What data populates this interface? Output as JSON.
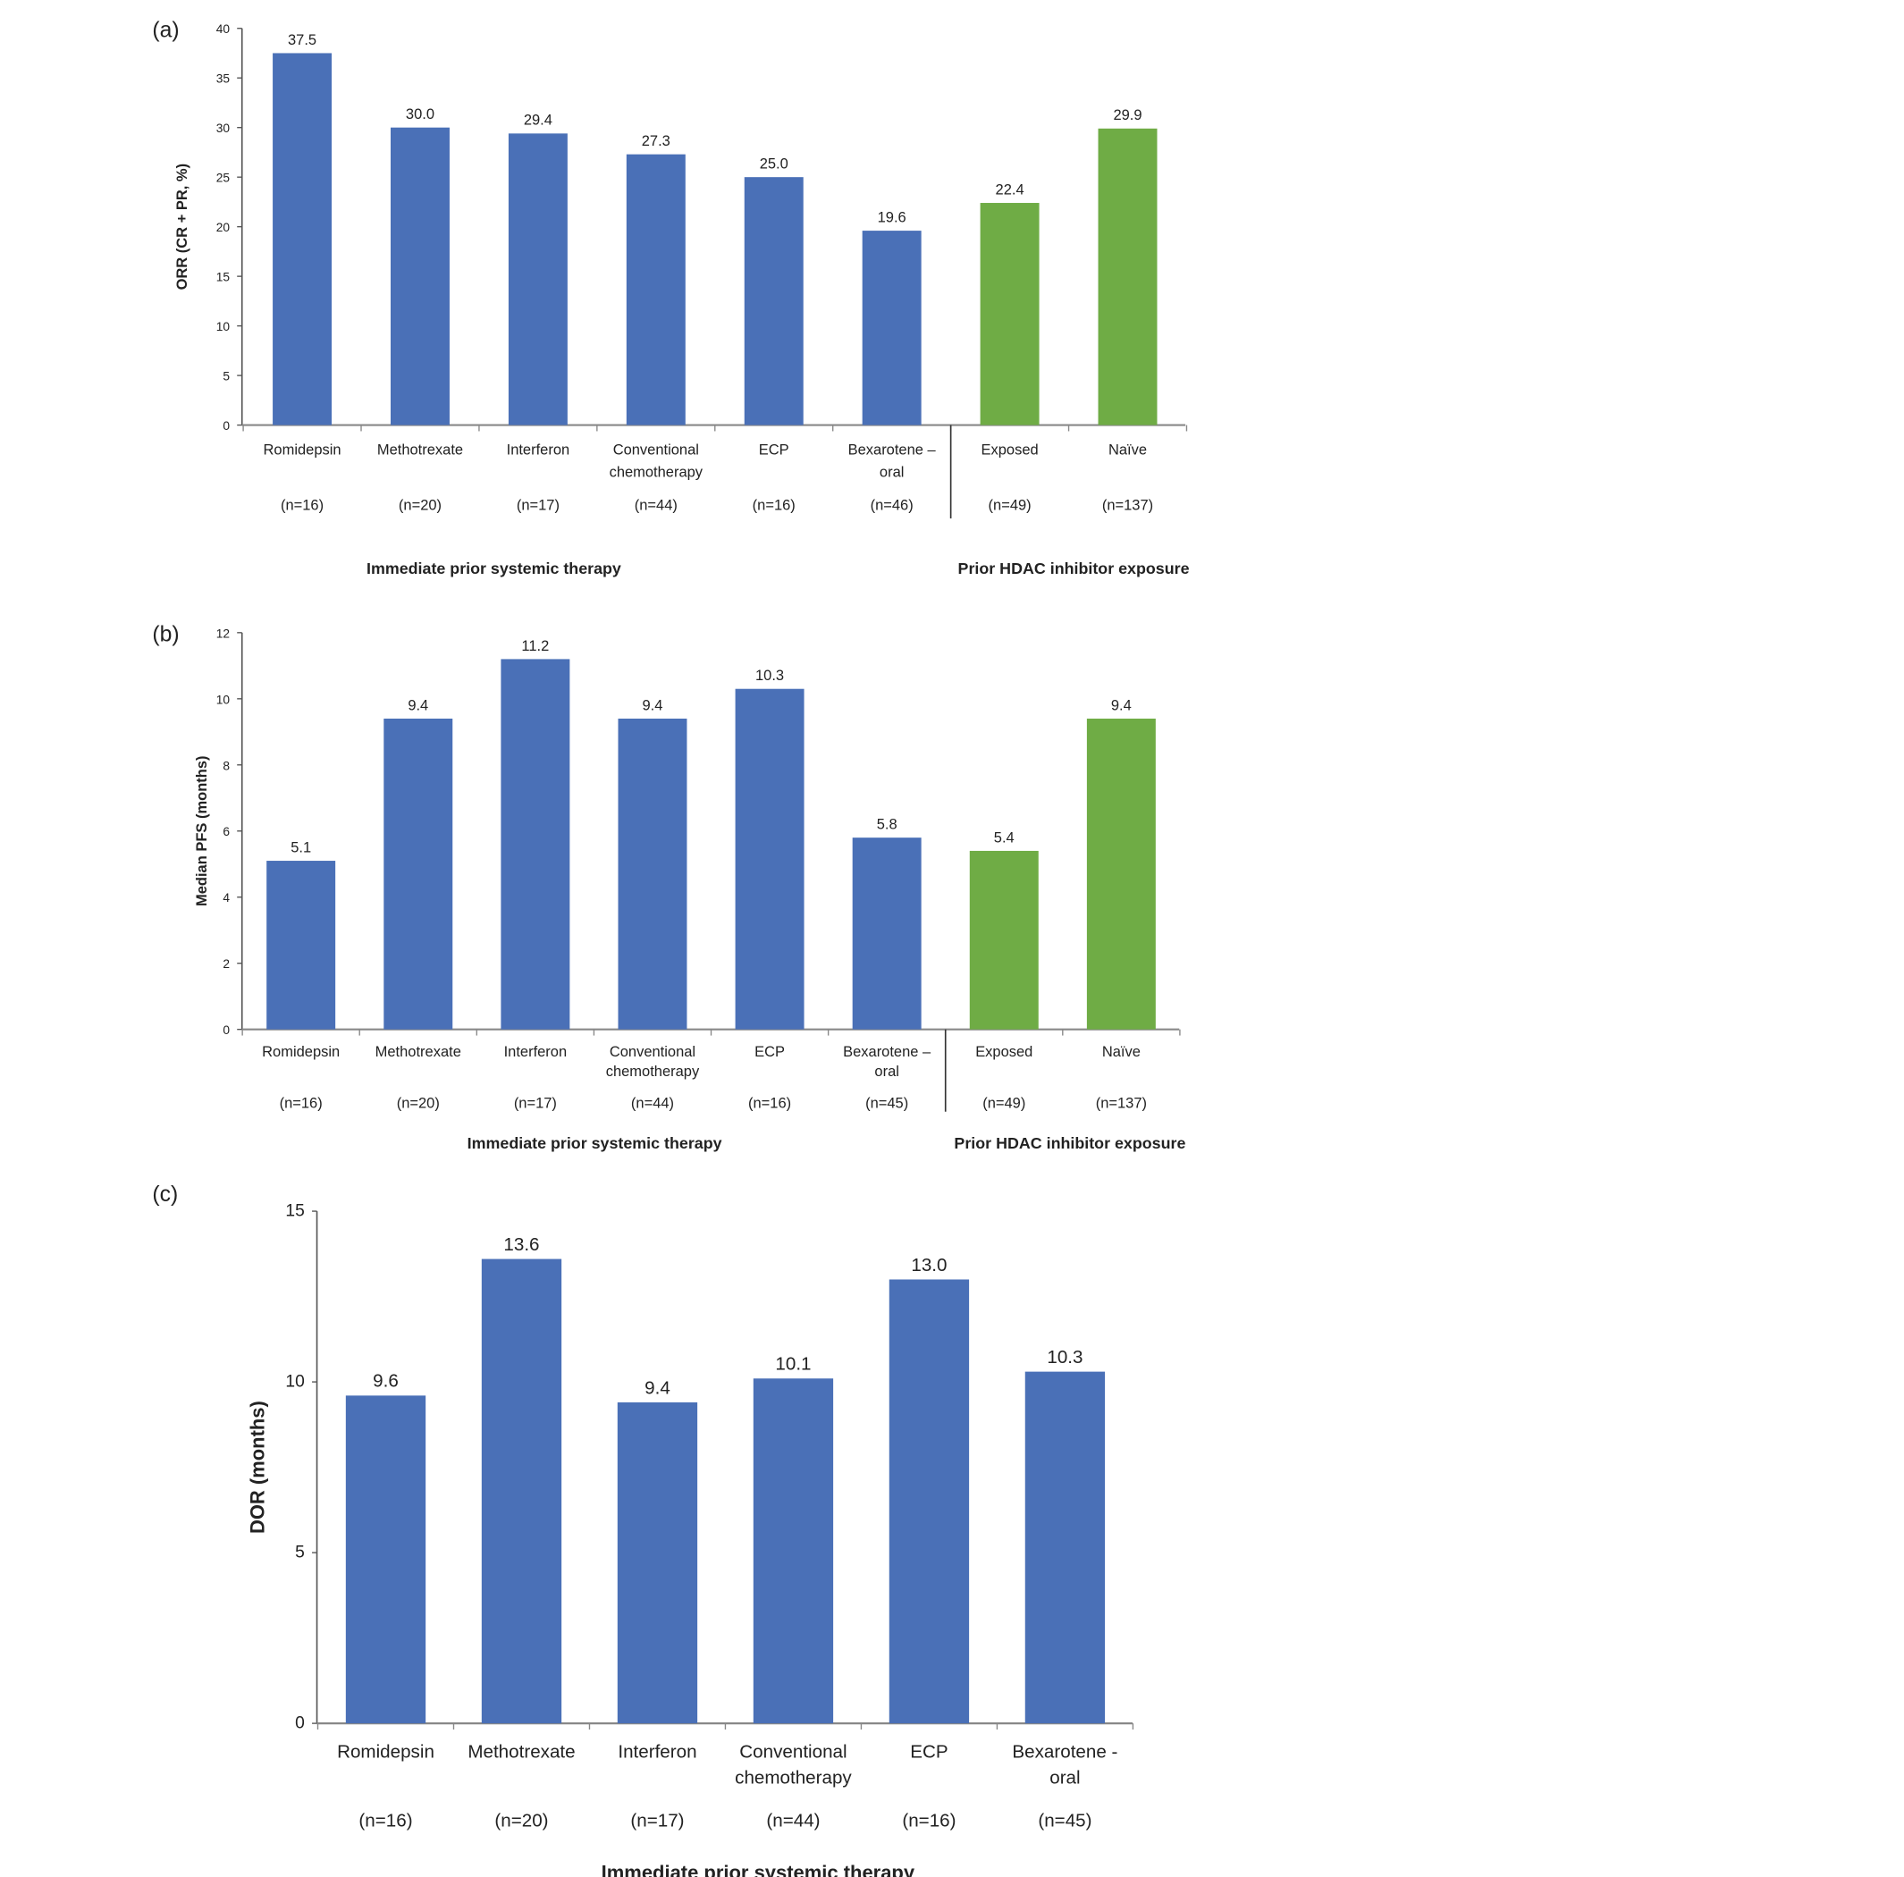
{
  "chart_data": [
    {
      "panel": "(a)",
      "type": "bar",
      "ylabel": "ORR (CR + PR, %)",
      "ylim": [
        0,
        40
      ],
      "yticks": [
        0,
        5,
        10,
        15,
        20,
        25,
        30,
        35,
        40
      ],
      "categories": [
        [
          "Romidepsin"
        ],
        [
          "Methotrexate"
        ],
        [
          "Interferon"
        ],
        [
          "Conventional",
          "chemotherapy"
        ],
        [
          "ECP"
        ],
        [
          "Bexarotene –",
          "oral"
        ],
        [
          "Exposed"
        ],
        [
          "Naïve"
        ]
      ],
      "n_labels": [
        "(n=16)",
        "(n=20)",
        "(n=17)",
        "(n=44)",
        "(n=16)",
        "(n=46)",
        "(n=49)",
        "(n=137)"
      ],
      "values": [
        37.5,
        30.0,
        29.4,
        27.3,
        25.0,
        19.6,
        22.4,
        29.9
      ],
      "value_labels": [
        "37.5",
        "30.0",
        "29.4",
        "27.3",
        "25.0",
        "19.6",
        "22.4",
        "29.9"
      ],
      "groups": [
        {
          "label": "Immediate prior systemic therapy",
          "count": 6,
          "color": "#4a70b7"
        },
        {
          "label": "Prior HDAC inhibitor exposure",
          "count": 2,
          "color": "#6fac45"
        }
      ]
    },
    {
      "panel": "(b)",
      "type": "bar",
      "ylabel": "Median PFS (months)",
      "ylim": [
        0,
        12
      ],
      "yticks": [
        0,
        2,
        4,
        6,
        8,
        10,
        12
      ],
      "categories": [
        [
          "Romidepsin"
        ],
        [
          "Methotrexate"
        ],
        [
          "Interferon"
        ],
        [
          "Conventional",
          "chemotherapy"
        ],
        [
          "ECP"
        ],
        [
          "Bexarotene –",
          "oral"
        ],
        [
          "Exposed"
        ],
        [
          "Naïve"
        ]
      ],
      "n_labels": [
        "(n=16)",
        "(n=20)",
        "(n=17)",
        "(n=44)",
        "(n=16)",
        "(n=45)",
        "(n=49)",
        "(n=137)"
      ],
      "values": [
        5.1,
        9.4,
        11.2,
        9.4,
        10.3,
        5.8,
        5.4,
        9.4
      ],
      "value_labels": [
        "5.1",
        "9.4",
        "11.2",
        "9.4",
        "10.3",
        "5.8",
        "5.4",
        "9.4"
      ],
      "groups": [
        {
          "label": "Immediate prior systemic therapy",
          "count": 6,
          "color": "#4a70b7"
        },
        {
          "label": "Prior HDAC inhibitor exposure",
          "count": 2,
          "color": "#6fac45"
        }
      ]
    },
    {
      "panel": "(c)",
      "type": "bar",
      "ylabel": "DOR (months)",
      "ylim": [
        0,
        15
      ],
      "yticks": [
        0,
        5,
        10,
        15
      ],
      "categories": [
        [
          "Romidepsin"
        ],
        [
          "Methotrexate"
        ],
        [
          "Interferon"
        ],
        [
          "Conventional",
          "chemotherapy"
        ],
        [
          "ECP"
        ],
        [
          "Bexarotene -",
          "oral"
        ]
      ],
      "n_labels": [
        "(n=16)",
        "(n=20)",
        "(n=17)",
        "(n=44)",
        "(n=16)",
        "(n=45)"
      ],
      "values": [
        9.6,
        13.6,
        9.4,
        10.1,
        13.0,
        10.3
      ],
      "value_labels": [
        "9.6",
        "13.6",
        "9.4",
        "10.1",
        "13.0",
        "10.3"
      ],
      "groups": [
        {
          "label": "Immediate prior systemic therapy",
          "count": 6,
          "color": "#4a70b7"
        }
      ]
    }
  ]
}
